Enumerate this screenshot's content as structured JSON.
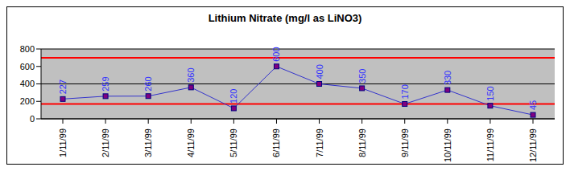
{
  "chart_data": {
    "type": "line",
    "title": "Lithium Nitrate (mg/l as LiNO3)",
    "categories": [
      "1/11/99",
      "2/11/99",
      "3/11/99",
      "4/11/99",
      "5/11/99",
      "6/11/99",
      "7/11/99",
      "8/11/99",
      "9/11/99",
      "10/11/99",
      "11/11/99",
      "12/11/99"
    ],
    "values": [
      227,
      259,
      260,
      360,
      120,
      600,
      400,
      350,
      170,
      330,
      150,
      45
    ],
    "color": "#3333cc",
    "marker": "square",
    "ylim": [
      0,
      800
    ],
    "yticks": [
      0,
      200,
      400,
      600,
      800
    ],
    "grid": true,
    "data_labels": true,
    "reference_lines": [
      700,
      170
    ]
  }
}
